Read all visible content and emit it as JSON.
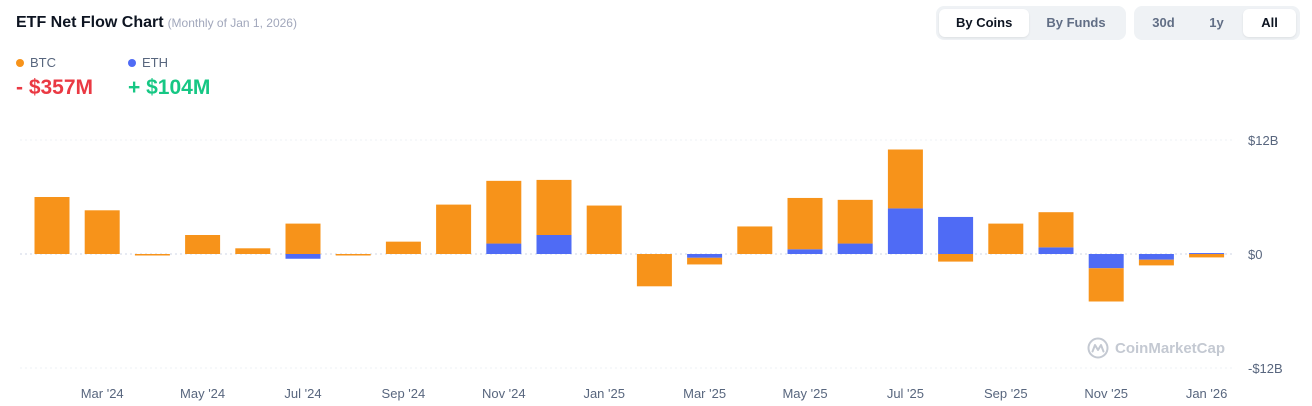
{
  "header": {
    "title": "ETF Net Flow Chart",
    "subtitle": "(Monthly of Jan 1, 2026)"
  },
  "toggles": {
    "view": [
      {
        "label": "By Coins",
        "active": true
      },
      {
        "label": "By Funds",
        "active": false
      }
    ],
    "range": [
      {
        "label": "30d",
        "active": false
      },
      {
        "label": "1y",
        "active": false
      },
      {
        "label": "All",
        "active": true
      }
    ]
  },
  "summary": {
    "btc": {
      "label": "BTC",
      "value": "- $357M",
      "color": "#f7931a",
      "value_color": "#ea3943"
    },
    "eth": {
      "label": "ETH",
      "value": "+ $104M",
      "color": "#4f6bf5",
      "value_color": "#16c784"
    }
  },
  "watermark": "CoinMarketCap",
  "chart_data": {
    "type": "bar",
    "stacked": true,
    "unit": "B USD",
    "ylim": [
      -12,
      12
    ],
    "yticks": [
      {
        "value": 12,
        "label": "$12B"
      },
      {
        "value": 0,
        "label": "$0"
      },
      {
        "value": -12,
        "label": "-$12B"
      }
    ],
    "x_tick_labels": [
      "Mar '24",
      "May '24",
      "Jul '24",
      "Sep '24",
      "Nov '24",
      "Jan '25",
      "Mar '25",
      "May '25",
      "Jul '25",
      "Sep '25",
      "Nov '25",
      "Jan '26"
    ],
    "x_tick_indices": [
      1,
      3,
      5,
      7,
      9,
      11,
      13,
      15,
      17,
      19,
      21,
      23
    ],
    "categories": [
      "Feb '24",
      "Mar '24",
      "Apr '24",
      "May '24",
      "Jun '24",
      "Jul '24",
      "Aug '24",
      "Sep '24",
      "Oct '24",
      "Nov '24",
      "Dec '24",
      "Jan '25",
      "Feb '25",
      "Mar '25",
      "Apr '25",
      "May '25",
      "Jun '25",
      "Jul '25",
      "Aug '25",
      "Sep '25",
      "Oct '25",
      "Nov '25",
      "Dec '25",
      "Jan '26"
    ],
    "series": [
      {
        "name": "BTC",
        "color": "#f7931a",
        "values": [
          6.0,
          4.6,
          -0.1,
          2.0,
          0.6,
          3.2,
          -0.1,
          1.3,
          5.2,
          6.6,
          5.8,
          5.1,
          -3.4,
          -0.7,
          2.9,
          5.4,
          4.6,
          6.2,
          -0.8,
          3.2,
          3.7,
          -3.5,
          -0.6,
          -0.36
        ],
        "mark_names": [
          "btc-bar-feb-24",
          "btc-bar-mar-24",
          "btc-bar-apr-24",
          "btc-bar-may-24",
          "btc-bar-jun-24",
          "btc-bar-jul-24",
          "btc-bar-aug-24",
          "btc-bar-sep-24",
          "btc-bar-oct-24",
          "btc-bar-nov-24",
          "btc-bar-dec-24",
          "btc-bar-jan-25",
          "btc-bar-feb-25",
          "btc-bar-mar-25",
          "btc-bar-apr-25",
          "btc-bar-may-25",
          "btc-bar-jun-25",
          "btc-bar-jul-25",
          "btc-bar-aug-25",
          "btc-bar-sep-25",
          "btc-bar-oct-25",
          "btc-bar-nov-25",
          "btc-bar-dec-25",
          "btc-bar-jan-26"
        ]
      },
      {
        "name": "ETH",
        "color": "#4f6bf5",
        "values": [
          0,
          0,
          0,
          0,
          0,
          -0.5,
          0,
          0,
          0,
          1.1,
          2.0,
          0,
          0,
          -0.4,
          0,
          0.5,
          1.1,
          4.8,
          3.9,
          0,
          0.7,
          -1.5,
          -0.6,
          0.1
        ],
        "mark_names": [
          "eth-bar-feb-24",
          "eth-bar-mar-24",
          "eth-bar-apr-24",
          "eth-bar-may-24",
          "eth-bar-jun-24",
          "eth-bar-jul-24",
          "eth-bar-aug-24",
          "eth-bar-sep-24",
          "eth-bar-oct-24",
          "eth-bar-nov-24",
          "eth-bar-dec-24",
          "eth-bar-jan-25",
          "eth-bar-feb-25",
          "eth-bar-mar-25",
          "eth-bar-apr-25",
          "eth-bar-may-25",
          "eth-bar-jun-25",
          "eth-bar-jul-25",
          "eth-bar-aug-25",
          "eth-bar-sep-25",
          "eth-bar-oct-25",
          "eth-bar-nov-25",
          "eth-bar-dec-25",
          "eth-bar-jan-26"
        ]
      }
    ],
    "title": "",
    "xlabel": "",
    "ylabel": ""
  }
}
